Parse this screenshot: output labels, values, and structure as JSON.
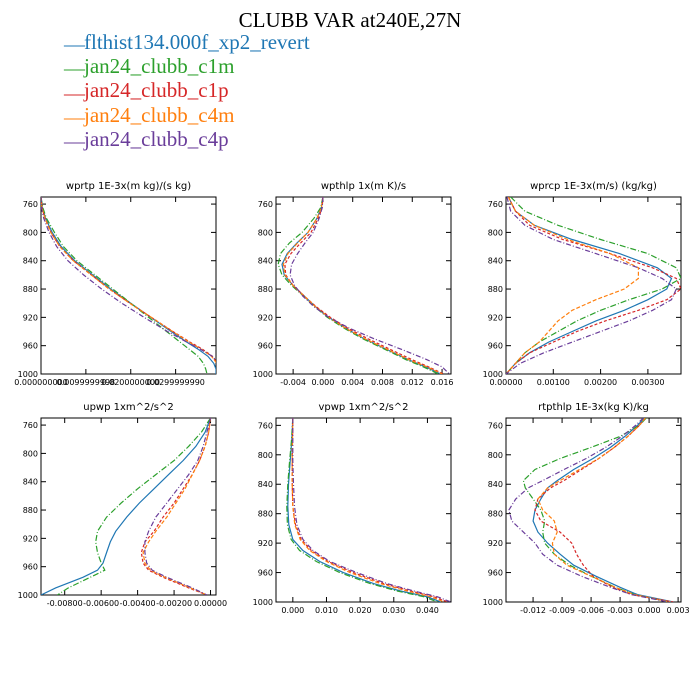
{
  "title": "CLUBB VAR at240E,27N",
  "legend": [
    {
      "label": "flthist134.000f_xp2_revert",
      "color": "#1f77b4"
    },
    {
      "label": "jan24_clubb_c1m",
      "color": "#2ca02c"
    },
    {
      "label": "jan24_clubb_c1p",
      "color": "#d62728"
    },
    {
      "label": "jan24_clubb_c4m",
      "color": "#ff7f0e"
    },
    {
      "label": "jan24_clubb_c4p",
      "color": "#6a3d9a"
    }
  ],
  "chart_data": [
    {
      "type": "line",
      "title": "wprtp  1E-3x(m kg)/(s kg)",
      "xlim": [
        0.0,
        0.039
      ],
      "ylim": [
        1000,
        750
      ],
      "y_inverted": true,
      "xticks": [
        0.0,
        0.01,
        0.02,
        0.03
      ],
      "xtick_labels": [
        "0.000000000",
        "0.0099999998",
        "0.0200000000",
        "0.0299999990"
      ],
      "yticks": [
        760,
        800,
        840,
        880,
        920,
        960,
        1000
      ],
      "y": [
        750,
        765,
        780,
        800,
        820,
        840,
        860,
        880,
        900,
        920,
        940,
        955,
        965,
        975,
        985,
        993,
        1000
      ],
      "series": [
        {
          "name": "flthist134.000f_xp2_revert",
          "color": "#1f77b4",
          "x": [
            0.0,
            0.0003,
            0.001,
            0.0025,
            0.0045,
            0.0075,
            0.0115,
            0.0155,
            0.02,
            0.0245,
            0.029,
            0.0325,
            0.035,
            0.0372,
            0.0385,
            0.039,
            0.039
          ]
        },
        {
          "name": "jan24_clubb_c1m",
          "color": "#2ca02c",
          "x": [
            0.0,
            0.0004,
            0.0012,
            0.003,
            0.005,
            0.008,
            0.012,
            0.016,
            0.02,
            0.024,
            0.028,
            0.031,
            0.033,
            0.035,
            0.0362,
            0.0367,
            0.037
          ]
        },
        {
          "name": "jan24_clubb_c1p",
          "color": "#d62728",
          "x": [
            0.0,
            0.0002,
            0.0009,
            0.0022,
            0.0042,
            0.0072,
            0.0112,
            0.0152,
            0.0198,
            0.0246,
            0.0294,
            0.0332,
            0.036,
            0.0382,
            0.0393,
            0.0396,
            0.0396
          ]
        },
        {
          "name": "jan24_clubb_c4m",
          "color": "#ff7f0e",
          "x": [
            0.0,
            0.0002,
            0.0009,
            0.0022,
            0.0042,
            0.0072,
            0.0112,
            0.0152,
            0.0198,
            0.0246,
            0.0293,
            0.033,
            0.0357,
            0.038,
            0.0392,
            0.0395,
            0.0395
          ]
        },
        {
          "name": "jan24_clubb_c4p",
          "color": "#6a3d9a",
          "x": [
            0.0,
            0.0001,
            0.0006,
            0.0018,
            0.0035,
            0.006,
            0.0095,
            0.0135,
            0.018,
            0.023,
            0.0282,
            0.0325,
            0.0355,
            0.0382,
            0.0396,
            0.04,
            0.04
          ]
        }
      ]
    },
    {
      "type": "line",
      "title": "wpthlp  1x(m K)/s",
      "xlim": [
        -0.0063,
        0.0172
      ],
      "ylim": [
        1000,
        750
      ],
      "y_inverted": true,
      "xticks": [
        -0.004,
        0.0,
        0.004,
        0.008,
        0.012,
        0.016
      ],
      "xtick_labels": [
        "-0.004",
        "0.000",
        "0.004",
        "0.008",
        "0.012",
        "0.016"
      ],
      "yticks": [
        760,
        800,
        840,
        880,
        920,
        960,
        1000
      ],
      "y": [
        750,
        765,
        780,
        800,
        815,
        830,
        845,
        860,
        875,
        890,
        905,
        920,
        935,
        950,
        965,
        980,
        990,
        1000
      ],
      "series": [
        {
          "name": "flthist134.000f_xp2_revert",
          "color": "#1f77b4",
          "x": [
            0.0,
            -0.0002,
            -0.0008,
            -0.002,
            -0.0035,
            -0.0048,
            -0.0055,
            -0.0052,
            -0.004,
            -0.0025,
            -0.001,
            0.0008,
            0.003,
            0.0055,
            0.0085,
            0.0115,
            0.0138,
            0.0158
          ]
        },
        {
          "name": "jan24_clubb_c1m",
          "color": "#2ca02c",
          "x": [
            0.0,
            -0.0003,
            -0.0012,
            -0.0028,
            -0.0045,
            -0.0057,
            -0.006,
            -0.0055,
            -0.0042,
            -0.0026,
            -0.0011,
            0.0006,
            0.0028,
            0.0053,
            0.0083,
            0.0112,
            0.0135,
            0.0155
          ]
        },
        {
          "name": "jan24_clubb_c1p",
          "color": "#d62728",
          "x": [
            0.0,
            -0.0001,
            -0.0006,
            -0.0016,
            -0.003,
            -0.0043,
            -0.0051,
            -0.005,
            -0.004,
            -0.0025,
            -0.0009,
            0.001,
            0.0033,
            0.006,
            0.009,
            0.012,
            0.0142,
            0.0162
          ]
        },
        {
          "name": "jan24_clubb_c4m",
          "color": "#ff7f0e",
          "x": [
            0.0,
            -0.0002,
            -0.0008,
            -0.002,
            -0.0034,
            -0.0047,
            -0.0053,
            -0.0051,
            -0.004,
            -0.0025,
            -0.001,
            0.0008,
            0.003,
            0.0056,
            0.0086,
            0.0116,
            0.014,
            0.016
          ]
        },
        {
          "name": "jan24_clubb_c4p",
          "color": "#6a3d9a",
          "x": [
            0.0,
            -0.0001,
            -0.0005,
            -0.0013,
            -0.0024,
            -0.0034,
            -0.0042,
            -0.0044,
            -0.0038,
            -0.0027,
            -0.0012,
            0.0008,
            0.0035,
            0.0068,
            0.0105,
            0.014,
            0.016,
            0.017
          ]
        }
      ]
    },
    {
      "type": "line",
      "title": "wprcp  1E-3x(m/s) (kg/kg)",
      "xlim": [
        0.0,
        0.0037
      ],
      "ylim": [
        1000,
        750
      ],
      "y_inverted": true,
      "xticks": [
        0.0,
        0.001,
        0.002,
        0.003
      ],
      "xtick_labels": [
        "0.00000",
        "0.00100",
        "0.00200",
        "0.00300"
      ],
      "yticks": [
        760,
        800,
        840,
        880,
        920,
        960,
        1000
      ],
      "y": [
        750,
        770,
        790,
        810,
        830,
        850,
        865,
        880,
        895,
        910,
        925,
        940,
        955,
        970,
        985,
        1000
      ],
      "series": [
        {
          "name": "flthist134.000f_xp2_revert",
          "color": "#1f77b4",
          "x": [
            5e-05,
            0.0002,
            0.0006,
            0.0014,
            0.0024,
            0.0032,
            0.0035,
            0.0034,
            0.003,
            0.0025,
            0.0019,
            0.0014,
            0.0009,
            0.0005,
            0.0002,
            0.0
          ]
        },
        {
          "name": "jan24_clubb_c1m",
          "color": "#2ca02c",
          "x": [
            0.0001,
            0.0004,
            0.0011,
            0.002,
            0.003,
            0.0036,
            0.0037,
            0.0033,
            0.0026,
            0.002,
            0.0015,
            0.0011,
            0.0007,
            0.0004,
            0.0002,
            0.0
          ]
        },
        {
          "name": "jan24_clubb_c1p",
          "color": "#d62728",
          "x": [
            5e-05,
            0.0002,
            0.0005,
            0.0012,
            0.0022,
            0.0031,
            0.0036,
            0.0037,
            0.0034,
            0.0028,
            0.0021,
            0.0015,
            0.001,
            0.0005,
            0.0002,
            0.0
          ]
        },
        {
          "name": "jan24_clubb_c4m",
          "color": "#ff7f0e",
          "x": [
            5e-05,
            0.0002,
            0.0006,
            0.0013,
            0.0022,
            0.0028,
            0.0028,
            0.0025,
            0.0019,
            0.0014,
            0.0011,
            0.0009,
            0.0007,
            0.0004,
            0.0002,
            0.0
          ]
        },
        {
          "name": "jan24_clubb_c4p",
          "color": "#6a3d9a",
          "x": [
            2e-05,
            0.0001,
            0.0004,
            0.001,
            0.0019,
            0.0028,
            0.0033,
            0.0036,
            0.0035,
            0.0031,
            0.0026,
            0.002,
            0.0014,
            0.0008,
            0.0003,
            0.0
          ]
        }
      ]
    },
    {
      "type": "line",
      "title": "upwp  1xm^2/s^2",
      "xlim": [
        -0.0093,
        0.0003
      ],
      "ylim": [
        1000,
        750
      ],
      "y_inverted": true,
      "xticks": [
        -0.008,
        -0.006,
        -0.004,
        -0.002,
        0.0
      ],
      "xtick_labels": [
        "-0.00800",
        "-0.00600",
        "-0.00400",
        "-0.00200",
        "0.00000"
      ],
      "yticks": [
        760,
        800,
        840,
        880,
        920,
        960,
        1000
      ],
      "y": [
        750,
        770,
        790,
        810,
        830,
        850,
        870,
        890,
        910,
        925,
        940,
        955,
        965,
        975,
        990,
        1000
      ],
      "series": [
        {
          "name": "flthist134.000f_xp2_revert",
          "color": "#1f77b4",
          "x": [
            0.0,
            -0.0003,
            -0.0008,
            -0.0015,
            -0.0023,
            -0.0031,
            -0.0039,
            -0.0046,
            -0.0052,
            -0.0055,
            -0.0057,
            -0.0059,
            -0.0062,
            -0.007,
            -0.0085,
            -0.0093
          ]
        },
        {
          "name": "jan24_clubb_c1m",
          "color": "#2ca02c",
          "x": [
            0.0,
            -0.0005,
            -0.0012,
            -0.002,
            -0.003,
            -0.004,
            -0.0049,
            -0.0057,
            -0.0062,
            -0.0063,
            -0.0062,
            -0.006,
            -0.0058,
            -0.0066,
            -0.0078,
            -0.0084
          ]
        },
        {
          "name": "jan24_clubb_c1p",
          "color": "#d62728",
          "x": [
            0.0,
            -0.0001,
            -0.0003,
            -0.0006,
            -0.001,
            -0.0015,
            -0.002,
            -0.0026,
            -0.0031,
            -0.0036,
            -0.0038,
            -0.0037,
            -0.0034,
            -0.0026,
            -0.0012,
            -0.0002
          ]
        },
        {
          "name": "jan24_clubb_c4m",
          "color": "#ff7f0e",
          "x": [
            0.0,
            -0.0001,
            -0.0003,
            -0.0006,
            -0.001,
            -0.0014,
            -0.0019,
            -0.0024,
            -0.003,
            -0.0034,
            -0.0037,
            -0.0036,
            -0.0033,
            -0.0025,
            -0.0011,
            -0.0002
          ]
        },
        {
          "name": "jan24_clubb_c4p",
          "color": "#6a3d9a",
          "x": [
            0.0,
            -0.0002,
            -0.0004,
            -0.0007,
            -0.0012,
            -0.0018,
            -0.0024,
            -0.003,
            -0.0034,
            -0.0036,
            -0.0036,
            -0.0035,
            -0.0032,
            -0.0024,
            -0.001,
            -0.0002
          ]
        }
      ]
    },
    {
      "type": "line",
      "title": "vpwp  1xm^2/s^2",
      "xlim": [
        -0.005,
        0.047
      ],
      "ylim": [
        1000,
        750
      ],
      "y_inverted": true,
      "xticks": [
        0.0,
        0.01,
        0.02,
        0.03,
        0.04
      ],
      "xtick_labels": [
        "0.000",
        "0.010",
        "0.020",
        "0.030",
        "0.040"
      ],
      "yticks": [
        760,
        800,
        840,
        880,
        920,
        960,
        1000
      ],
      "y": [
        750,
        780,
        810,
        840,
        870,
        895,
        915,
        930,
        945,
        960,
        975,
        985,
        993,
        1000
      ],
      "series": [
        {
          "name": "flthist134.000f_xp2_revert",
          "color": "#1f77b4",
          "x": [
            0.0,
            -0.0003,
            -0.0008,
            -0.0013,
            -0.0015,
            -0.0012,
            0.0,
            0.003,
            0.008,
            0.015,
            0.024,
            0.032,
            0.04,
            0.044
          ]
        },
        {
          "name": "jan24_clubb_c1m",
          "color": "#2ca02c",
          "x": [
            0.0,
            -0.0004,
            -0.001,
            -0.0015,
            -0.0018,
            -0.0016,
            -0.0005,
            0.002,
            0.007,
            0.014,
            0.023,
            0.031,
            0.039,
            0.043
          ]
        },
        {
          "name": "jan24_clubb_c1p",
          "color": "#d62728",
          "x": [
            0.0,
            -0.0001,
            -0.0002,
            -0.0002,
            0.0,
            0.0008,
            0.0025,
            0.0055,
            0.0105,
            0.018,
            0.027,
            0.035,
            0.042,
            0.046
          ]
        },
        {
          "name": "jan24_clubb_c4m",
          "color": "#ff7f0e",
          "x": [
            0.0,
            -0.0001,
            -0.0002,
            -0.0002,
            0.0,
            0.0006,
            0.0022,
            0.005,
            0.01,
            0.017,
            0.026,
            0.034,
            0.041,
            0.045
          ]
        },
        {
          "name": "jan24_clubb_c4p",
          "color": "#6a3d9a",
          "x": [
            0.0,
            0.0,
            0.0,
            0.0002,
            0.0005,
            0.0012,
            0.003,
            0.006,
            0.011,
            0.019,
            0.028,
            0.036,
            0.043,
            0.047
          ]
        }
      ]
    },
    {
      "type": "line",
      "title": "rtpthlp  1E-3x(kg K)/kg",
      "xlim": [
        -0.0148,
        0.0033
      ],
      "ylim": [
        1000,
        750
      ],
      "y_inverted": true,
      "xticks": [
        -0.012,
        -0.009,
        -0.006,
        -0.003,
        0.0,
        0.003
      ],
      "xtick_labels": [
        "-0.012",
        "-0.009",
        "-0.006",
        "-0.003",
        "0.000",
        "0.003"
      ],
      "yticks": [
        760,
        800,
        840,
        880,
        920,
        960,
        1000
      ],
      "y": [
        750,
        760,
        775,
        790,
        805,
        820,
        835,
        845,
        860,
        875,
        890,
        905,
        920,
        935,
        950,
        965,
        980,
        990,
        1000
      ],
      "series": [
        {
          "name": "flthist134.000f_xp2_revert",
          "color": "#1f77b4",
          "x": [
            -0.0005,
            -0.0012,
            -0.0025,
            -0.004,
            -0.0058,
            -0.0078,
            -0.0095,
            -0.0105,
            -0.0112,
            -0.0118,
            -0.012,
            -0.0115,
            -0.0105,
            -0.0092,
            -0.0078,
            -0.0055,
            -0.003,
            -0.0012,
            0.0025
          ]
        },
        {
          "name": "jan24_clubb_c1m",
          "color": "#2ca02c",
          "x": [
            -0.0003,
            -0.001,
            -0.003,
            -0.006,
            -0.0092,
            -0.0118,
            -0.013,
            -0.0128,
            -0.012,
            -0.0112,
            -0.0108,
            -0.011,
            -0.0108,
            -0.0098,
            -0.0082,
            -0.006,
            -0.0035,
            -0.0015,
            0.002
          ]
        },
        {
          "name": "jan24_clubb_c1p",
          "color": "#d62728",
          "x": [
            -0.0004,
            -0.001,
            -0.0022,
            -0.0036,
            -0.0052,
            -0.007,
            -0.0088,
            -0.0102,
            -0.0115,
            -0.0118,
            -0.0112,
            -0.0092,
            -0.008,
            -0.0075,
            -0.0068,
            -0.0058,
            -0.0038,
            -0.0018,
            0.0025
          ]
        },
        {
          "name": "jan24_clubb_c4m",
          "color": "#ff7f0e",
          "x": [
            -0.0004,
            -0.001,
            -0.0022,
            -0.0036,
            -0.0052,
            -0.0072,
            -0.0092,
            -0.0105,
            -0.0115,
            -0.011,
            -0.0098,
            -0.0095,
            -0.01,
            -0.0098,
            -0.0085,
            -0.006,
            -0.0035,
            -0.0015,
            0.0022
          ]
        },
        {
          "name": "jan24_clubb_c4p",
          "color": "#6a3d9a",
          "x": [
            -0.0006,
            -0.0014,
            -0.0028,
            -0.0045,
            -0.0065,
            -0.0088,
            -0.011,
            -0.0125,
            -0.0138,
            -0.0145,
            -0.0142,
            -0.013,
            -0.0118,
            -0.011,
            -0.0095,
            -0.007,
            -0.004,
            -0.0018,
            0.002
          ]
        }
      ]
    }
  ]
}
